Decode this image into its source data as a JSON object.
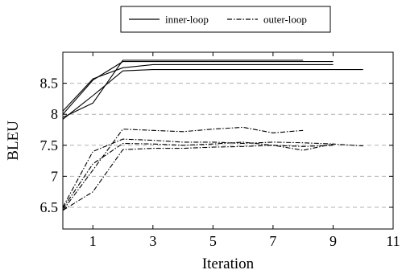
{
  "chart_data": {
    "type": "line",
    "xlabel": "Iteration",
    "ylabel": "BLEU",
    "xlim": [
      0,
      11
    ],
    "ylim": [
      6.15,
      9.0
    ],
    "xticks": [
      1,
      3,
      5,
      7,
      9,
      11
    ],
    "yticks": [
      6.5,
      7,
      7.5,
      8,
      8.5
    ],
    "ytick_labels": [
      "6.5",
      "7",
      "7.5",
      "8",
      "8.5"
    ],
    "grid": "horizontal dashed at y ticks",
    "legend": {
      "placement": "top-center",
      "entries": [
        "inner-loop",
        "outer-loop"
      ]
    },
    "series": [
      {
        "name": "inner-loop",
        "style": "solid",
        "color": "#000000",
        "x": [
          0,
          1,
          2,
          3,
          4,
          5,
          6,
          7,
          8
        ],
        "y": [
          7.95,
          8.18,
          8.87,
          8.87,
          8.87,
          8.87,
          8.87,
          8.87,
          8.87
        ]
      },
      {
        "name": "inner-loop",
        "style": "solid",
        "color": "#000000",
        "x": [
          0,
          1,
          2,
          3,
          4,
          5,
          6,
          7,
          8,
          9
        ],
        "y": [
          8.0,
          8.55,
          8.85,
          8.85,
          8.85,
          8.85,
          8.85,
          8.85,
          8.85,
          8.85
        ]
      },
      {
        "name": "inner-loop",
        "style": "solid",
        "color": "#000000",
        "x": [
          0,
          1,
          2,
          3,
          4,
          5,
          6,
          7,
          8,
          9
        ],
        "y": [
          8.05,
          8.57,
          8.75,
          8.8,
          8.8,
          8.8,
          8.8,
          8.8,
          8.8,
          8.8
        ]
      },
      {
        "name": "inner-loop",
        "style": "solid",
        "color": "#000000",
        "x": [
          0,
          1,
          2,
          3,
          4,
          5,
          6,
          7,
          8,
          9,
          10
        ],
        "y": [
          7.92,
          8.3,
          8.7,
          8.72,
          8.72,
          8.72,
          8.72,
          8.72,
          8.72,
          8.72,
          8.72
        ]
      },
      {
        "name": "outer-loop",
        "style": "dashdot",
        "color": "#000000",
        "x": [
          0,
          1,
          2,
          3,
          4,
          5,
          6,
          7,
          8
        ],
        "y": [
          6.45,
          7.1,
          7.76,
          7.74,
          7.72,
          7.76,
          7.79,
          7.7,
          7.74
        ]
      },
      {
        "name": "outer-loop",
        "style": "dashdot",
        "color": "#000000",
        "x": [
          0,
          1,
          2,
          3,
          4,
          5,
          6,
          7,
          8,
          9
        ],
        "y": [
          6.5,
          7.4,
          7.6,
          7.58,
          7.55,
          7.55,
          7.53,
          7.55,
          7.54,
          7.52
        ]
      },
      {
        "name": "outer-loop",
        "style": "dashdot",
        "color": "#000000",
        "x": [
          0,
          1,
          2,
          3,
          4,
          5,
          6,
          7,
          8,
          9
        ],
        "y": [
          6.48,
          7.2,
          7.53,
          7.52,
          7.5,
          7.52,
          7.55,
          7.5,
          7.48,
          7.5
        ]
      },
      {
        "name": "outer-loop",
        "style": "dashdot",
        "color": "#000000",
        "x": [
          0,
          1,
          2,
          3,
          4,
          5,
          6,
          7,
          8,
          9,
          10
        ],
        "y": [
          6.45,
          6.75,
          7.43,
          7.45,
          7.45,
          7.47,
          7.48,
          7.5,
          7.42,
          7.52,
          7.49
        ]
      }
    ]
  }
}
